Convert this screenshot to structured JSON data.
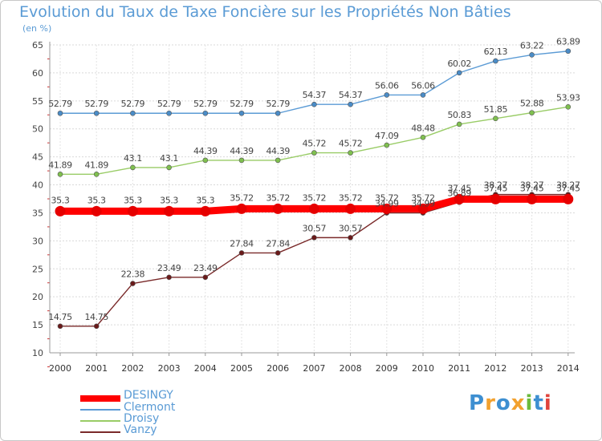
{
  "chart_data": {
    "type": "line",
    "title": "Evolution du Taux de Taxe Foncière sur les Propriétés Non Bâties",
    "ylabel": "(en %)",
    "xlabel": "",
    "ylim": [
      10,
      65
    ],
    "yticks": [
      10,
      15,
      20,
      25,
      30,
      35,
      40,
      45,
      50,
      55,
      60,
      65
    ],
    "categories": [
      "2000",
      "2001",
      "2002",
      "2003",
      "2004",
      "2005",
      "2006",
      "2007",
      "2008",
      "2009",
      "2010",
      "2011",
      "2012",
      "2013",
      "2014"
    ],
    "series": [
      {
        "name": "Clermont",
        "color": "#5b9bd5",
        "marker": "#4a8cc7",
        "values": [
          52.79,
          52.79,
          52.79,
          52.79,
          52.79,
          52.79,
          52.79,
          54.37,
          54.37,
          56.06,
          56.06,
          60.02,
          62.13,
          63.22,
          63.89
        ],
        "labels": [
          "52.79",
          "52.79",
          "52.79",
          "52.79",
          "52.79",
          "52.79",
          "52.79",
          "54.37",
          "54.37",
          "56.06",
          "56.06",
          "60.02",
          "62.13",
          "63.22",
          "63.89"
        ]
      },
      {
        "name": "Droisy",
        "color": "#99cc66",
        "marker": "#7fc04f",
        "values": [
          41.89,
          41.89,
          43.1,
          43.1,
          44.39,
          44.39,
          44.39,
          45.72,
          45.72,
          47.09,
          48.48,
          50.83,
          51.85,
          52.88,
          53.93
        ],
        "labels": [
          "41.89",
          "41.89",
          "43.1",
          "43.1",
          "44.39",
          "44.39",
          "44.39",
          "45.72",
          "45.72",
          "47.09",
          "48.48",
          "50.83",
          "51.85",
          "52.88",
          "53.93"
        ]
      },
      {
        "name": "DESINGY",
        "color": "#ff0000",
        "marker": "#e60000",
        "values": [
          35.3,
          35.3,
          35.3,
          35.3,
          35.3,
          35.72,
          35.72,
          35.72,
          35.72,
          35.72,
          35.72,
          37.45,
          37.45,
          37.45,
          37.45
        ],
        "labels": [
          "35.3",
          "35.3",
          "35.3",
          "35.3",
          "35.3",
          "35.72",
          "35.72",
          "35.72",
          "35.72",
          "35.72",
          "35.72",
          "37.45",
          "37.45",
          "37.45",
          "37.45"
        ]
      },
      {
        "name": "Vanzy",
        "color": "#7a2a2a",
        "marker": "#6a1a1a",
        "values": [
          14.75,
          14.75,
          22.38,
          23.49,
          23.49,
          27.84,
          27.84,
          30.57,
          30.57,
          34.99,
          34.99,
          36.89,
          38.27,
          38.27,
          38.27
        ],
        "labels": [
          "14.75",
          "14.75",
          "22.38",
          "23.49",
          "23.49",
          "27.84",
          "27.84",
          "30.57",
          "30.57",
          "34.99",
          "34.99",
          "36.89",
          "38.27",
          "38.27",
          "38.27"
        ]
      }
    ],
    "legend": [
      "DESINGY",
      "Clermont",
      "Droisy",
      "Vanzy"
    ]
  },
  "legend_items": [
    {
      "label": "DESINGY",
      "color": "#ff0000"
    },
    {
      "label": "Clermont",
      "color": "#5b9bd5"
    },
    {
      "label": "Droisy",
      "color": "#99cc66"
    },
    {
      "label": "Vanzy",
      "color": "#7a2a2a"
    }
  ],
  "logo": {
    "text": "Proxiti"
  }
}
